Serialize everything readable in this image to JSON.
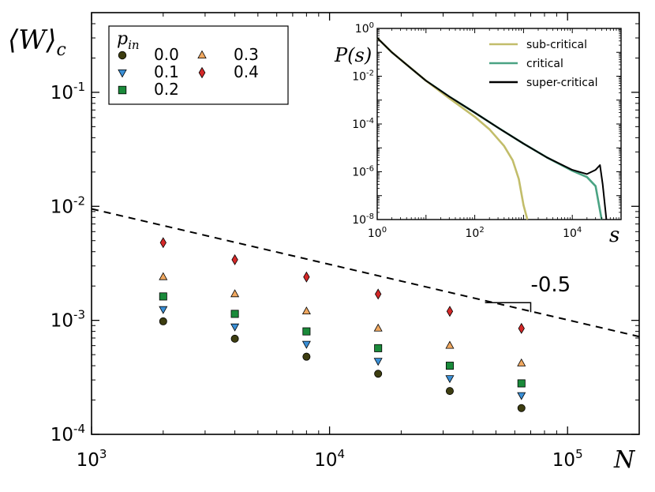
{
  "chart_data": [
    {
      "type": "scatter",
      "xlabel": "N",
      "ylabel": "⟨W⟩c",
      "xscale": "log",
      "yscale": "log",
      "xlim": [
        1000,
        200000
      ],
      "ylim": [
        0.0001,
        0.5
      ],
      "x_ticks": [
        {
          "base": "10",
          "exp": "3",
          "value": 1000
        },
        {
          "base": "10",
          "exp": "4",
          "value": 10000
        },
        {
          "base": "10",
          "exp": "5",
          "value": 100000
        }
      ],
      "y_ticks": [
        {
          "base": "10",
          "exp": "-4",
          "value": 0.0001
        },
        {
          "base": "10",
          "exp": "-3",
          "value": 0.001
        },
        {
          "base": "10",
          "exp": "-2",
          "value": 0.01
        },
        {
          "base": "10",
          "exp": "-1",
          "value": 0.1
        }
      ],
      "legend_title": "p",
      "legend_title_sub": "in",
      "legend_position": "top-left",
      "x": [
        2000,
        4000,
        8000,
        16000,
        32000,
        64000
      ],
      "series": [
        {
          "name": "0.0",
          "marker": "circle",
          "color": "#3d3d10",
          "values": [
            0.00098,
            0.00069,
            0.00048,
            0.00034,
            0.00024,
            0.00017
          ]
        },
        {
          "name": "0.1",
          "marker": "triangle-down",
          "color": "#3a8fd6",
          "values": [
            0.00125,
            0.00088,
            0.00062,
            0.00044,
            0.00031,
            0.00022
          ]
        },
        {
          "name": "0.2",
          "marker": "square",
          "color": "#1a8a3a",
          "values": [
            0.00162,
            0.00114,
            0.0008,
            0.00057,
            0.0004,
            0.00028
          ]
        },
        {
          "name": "0.3",
          "marker": "triangle-up",
          "color": "#f0a860",
          "values": [
            0.0024,
            0.0017,
            0.0012,
            0.00085,
            0.0006,
            0.00042
          ]
        },
        {
          "name": "0.4",
          "marker": "diamond",
          "color": "#d42828",
          "values": [
            0.0048,
            0.0034,
            0.0024,
            0.0017,
            0.0012,
            0.00085
          ]
        }
      ],
      "reference_line": {
        "style": "dashed",
        "color": "#000000",
        "x": [
          1000,
          200000
        ],
        "y": [
          0.0095,
          0.00072
        ]
      },
      "slope_annotation": {
        "label": "-0.5",
        "x0": 45000,
        "x1": 70000,
        "y0": 0.00143,
        "y1": 0.00118
      }
    },
    {
      "type": "line",
      "inset": true,
      "xlabel": "s",
      "ylabel": "P(s)",
      "xscale": "log",
      "yscale": "log",
      "xlim": [
        1,
        100000
      ],
      "ylim": [
        1e-08,
        1
      ],
      "x_ticks": [
        {
          "base": "10",
          "exp": "0",
          "value": 1
        },
        {
          "base": "10",
          "exp": "2",
          "value": 100
        },
        {
          "base": "10",
          "exp": "4",
          "value": 10000
        }
      ],
      "y_ticks": [
        {
          "base": "10",
          "exp": "0",
          "value": 1
        },
        {
          "base": "10",
          "exp": "-2",
          "value": 0.01
        },
        {
          "base": "10",
          "exp": "-4",
          "value": 0.0001
        },
        {
          "base": "10",
          "exp": "-6",
          "value": 1e-06
        },
        {
          "base": "10",
          "exp": "-8",
          "value": 1e-08
        }
      ],
      "legend_position": "top-right",
      "series": [
        {
          "name": "sub-critical",
          "color": "#c2bd6a",
          "x": [
            1,
            2,
            5,
            10,
            30,
            100,
            200,
            400,
            600,
            800,
            1000,
            1200
          ],
          "y": [
            0.4,
            0.1,
            0.021,
            0.0065,
            0.0012,
            0.0002,
            6e-05,
            1.2e-05,
            3e-06,
            5e-07,
            4e-08,
            1e-08
          ]
        },
        {
          "name": "critical",
          "color": "#4aa383",
          "x": [
            1,
            2,
            5,
            10,
            30,
            100,
            300,
            1000,
            3000,
            10000,
            20000,
            30000,
            40000
          ],
          "y": [
            0.4,
            0.1,
            0.021,
            0.0065,
            0.0014,
            0.0003,
            7e-05,
            1.5e-05,
            4e-06,
            1.1e-06,
            6e-07,
            2.5e-07,
            1e-08
          ]
        },
        {
          "name": "super-critical",
          "color": "#000000",
          "x": [
            1,
            2,
            5,
            10,
            30,
            100,
            300,
            1000,
            3000,
            10000,
            20000,
            30000,
            37000,
            42000,
            50000
          ],
          "y": [
            0.4,
            0.1,
            0.021,
            0.0065,
            0.0014,
            0.0003,
            7e-05,
            1.5e-05,
            4e-06,
            1.2e-06,
            8e-07,
            1.2e-06,
            1.9e-06,
            3e-07,
            1e-08
          ]
        }
      ]
    }
  ]
}
